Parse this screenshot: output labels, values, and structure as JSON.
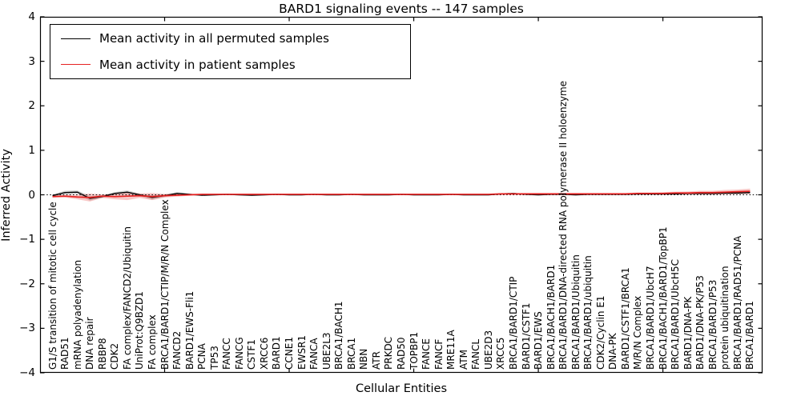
{
  "chart_data": {
    "type": "line",
    "title": "BARD1 signaling events -- 147 samples",
    "xlabel": "Cellular Entities",
    "ylabel": "Inferred Activity",
    "ylim": [
      -4,
      4
    ],
    "yticks": [
      4,
      3,
      2,
      1,
      0,
      -1,
      -2,
      -3,
      -4
    ],
    "xlim": [
      0,
      58
    ],
    "xticks_major": [
      10,
      20,
      30,
      40,
      50
    ],
    "zero_line": true,
    "grid": false,
    "legend_position": "upper left",
    "categories": [
      "G1/S transition of mitotic cell cycle",
      "RAD51",
      "mRNA polyadenylation",
      "DNA repair",
      "RBBP8",
      "CDK2",
      "FA complex/FANCD2/Ubiquitin",
      "UniProt:Q9BZD1",
      "FA complex",
      "BRCA1/BARD1/CTIP/M/R/N Complex",
      "FANCD2",
      "BARD1/EWS-Fli1",
      "PCNA",
      "TP53",
      "FANCC",
      "FANCG",
      "CSTF1",
      "XRCC6",
      "BARD1",
      "CCNE1",
      "EWSR1",
      "FANCA",
      "UBE2L3",
      "BRCA1/BACH1",
      "BRCA1",
      "NBN",
      "ATR",
      "PRKDC",
      "RAD50",
      "TOPBP1",
      "FANCE",
      "FANCF",
      "MRE11A",
      "ATM",
      "FANCL",
      "UBE2D3",
      "XRCC5",
      "BRCA1/BARD1/CTIP",
      "BARD1/CSTF1",
      "BARD1/EWS",
      "BRCA1/BACH1/BARD1",
      "BRCA1/BARD1/DNA-directed RNA polymerase II holoenzyme",
      "BRCA1/BARD1/Ubiquitin",
      "BRCA1/BARD1/ubiquitin",
      "CDK2/Cyclin E1",
      "DNA-PK",
      "BARD1/CSTF1/BRCA1",
      "M/R/N Complex",
      "BRCA1/BARD1/UbcH7",
      "BRCA1/BACH1/BARD1/TopBP1",
      "BRCA1/BARD1/UbcH5C",
      "BARD1/DNA-PK",
      "BARD1/DNA-PK/P53",
      "BRCA1/BARD1/P53",
      "protein ubiquitination",
      "BRCA1/BARD1/RAD51/PCNA",
      "BRCA1/BARD1"
    ],
    "series": [
      {
        "name": "Mean activity in all permuted samples",
        "color": "#000000",
        "band_color": "rgba(110,110,110,0.30)",
        "values": [
          -0.02,
          0.05,
          0.06,
          -0.08,
          -0.04,
          0.03,
          0.06,
          0.0,
          -0.06,
          -0.02,
          0.03,
          0.01,
          -0.01,
          0.0,
          0.01,
          0.0,
          -0.01,
          0.0,
          0.01,
          0.0,
          0.0,
          0.01,
          0.0,
          0.0,
          0.01,
          0.0,
          0.0,
          0.0,
          0.01,
          0.0,
          0.0,
          0.0,
          0.01,
          0.0,
          0.0,
          0.0,
          0.02,
          0.03,
          0.01,
          0.0,
          0.01,
          0.01,
          0.0,
          0.01,
          0.01,
          0.01,
          0.01,
          0.02,
          0.02,
          0.02,
          0.02,
          0.03,
          0.03,
          0.03,
          0.04,
          0.04,
          0.05
        ],
        "band": [
          0.03,
          0.04,
          0.04,
          0.05,
          0.03,
          0.03,
          0.04,
          0.03,
          0.05,
          0.03,
          0.03,
          0.02,
          0.015,
          0.015,
          0.015,
          0.015,
          0.015,
          0.015,
          0.015,
          0.015,
          0.015,
          0.015,
          0.015,
          0.015,
          0.015,
          0.015,
          0.015,
          0.015,
          0.015,
          0.015,
          0.015,
          0.015,
          0.015,
          0.015,
          0.015,
          0.015,
          0.015,
          0.015,
          0.015,
          0.015,
          0.015,
          0.015,
          0.015,
          0.015,
          0.015,
          0.015,
          0.015,
          0.02,
          0.02,
          0.02,
          0.02,
          0.02,
          0.025,
          0.025,
          0.025,
          0.03,
          0.03
        ]
      },
      {
        "name": "Mean activity in patient samples",
        "color": "#e62222",
        "band_color": "rgba(229,57,53,0.28)",
        "values": [
          -0.04,
          -0.03,
          -0.05,
          -0.06,
          -0.03,
          -0.04,
          -0.03,
          -0.02,
          -0.04,
          -0.02,
          -0.01,
          0.0,
          0.01,
          0.01,
          0.01,
          0.01,
          0.01,
          0.01,
          0.01,
          0.01,
          0.01,
          0.01,
          0.01,
          0.01,
          0.01,
          0.01,
          0.01,
          0.01,
          0.01,
          0.01,
          0.01,
          0.01,
          0.01,
          0.01,
          0.01,
          0.01,
          0.02,
          0.02,
          0.02,
          0.02,
          0.02,
          0.02,
          0.02,
          0.02,
          0.02,
          0.02,
          0.02,
          0.03,
          0.03,
          0.03,
          0.04,
          0.04,
          0.05,
          0.05,
          0.06,
          0.07,
          0.08
        ],
        "band": [
          0.02,
          0.03,
          0.05,
          0.09,
          0.04,
          0.06,
          0.09,
          0.05,
          0.08,
          0.04,
          0.03,
          0.02,
          0.015,
          0.015,
          0.015,
          0.015,
          0.015,
          0.015,
          0.015,
          0.015,
          0.015,
          0.015,
          0.015,
          0.015,
          0.015,
          0.015,
          0.015,
          0.015,
          0.015,
          0.015,
          0.015,
          0.015,
          0.015,
          0.015,
          0.015,
          0.015,
          0.02,
          0.02,
          0.02,
          0.02,
          0.02,
          0.02,
          0.02,
          0.02,
          0.02,
          0.02,
          0.02,
          0.025,
          0.025,
          0.03,
          0.03,
          0.035,
          0.04,
          0.04,
          0.05,
          0.05,
          0.06
        ]
      }
    ]
  }
}
